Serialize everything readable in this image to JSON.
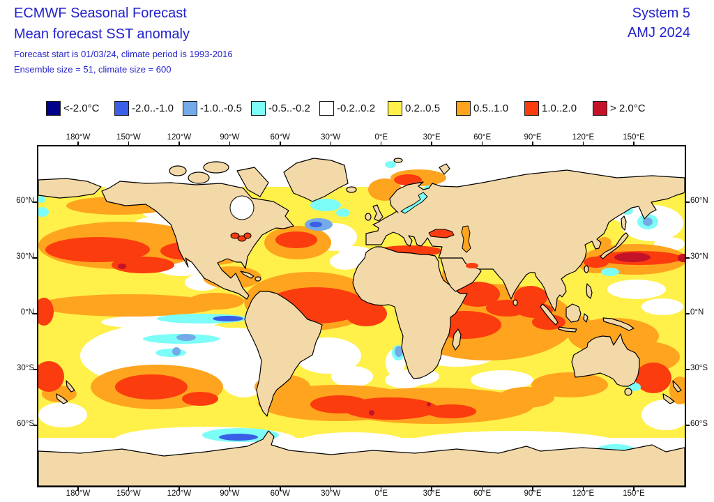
{
  "header": {
    "title": "ECMWF Seasonal Forecast",
    "subtitle": "Mean forecast SST anomaly",
    "meta_line1": "Forecast start is 01/03/24, climate period is 1993-2016",
    "meta_line2": "Ensemble size = 51, climate size = 600",
    "system": "System 5",
    "season": "AMJ 2024",
    "accent_color": "#2222cc"
  },
  "legend": {
    "items": [
      {
        "label": "<-2.0°C",
        "color": "#00008b"
      },
      {
        "label": "-2.0..-1.0",
        "color": "#3a5fe6"
      },
      {
        "label": "-1.0..-0.5",
        "color": "#74aae8"
      },
      {
        "label": "-0.5..-0.2",
        "color": "#7dfdf8"
      },
      {
        "label": "-0.2..0.2",
        "color": "#ffffff"
      },
      {
        "label": "0.2..0.5",
        "color": "#fff04a"
      },
      {
        "label": "0.5..1.0",
        "color": "#ffa41e"
      },
      {
        "label": "1.0..2.0",
        "color": "#fb3c0e"
      },
      {
        "label": "> 2.0°C",
        "color": "#c41228"
      }
    ]
  },
  "map": {
    "land_color": "#f4d9a8",
    "top_ticks": [
      "180°W",
      "150°W",
      "120°W",
      "90°W",
      "60°W",
      "30°W",
      "0°E",
      "30°E",
      "60°E",
      "90°E",
      "120°E",
      "150°E"
    ],
    "bottom_ticks": [
      "180°W",
      "150°W",
      "120°W",
      "90°W",
      "60°W",
      "30°W",
      "0°E",
      "30°E",
      "60°E",
      "90°E",
      "120°E",
      "150°E"
    ],
    "left_ticks": [
      "60°N",
      "30°N",
      "0°N",
      "30°S",
      "60°S"
    ],
    "right_ticks": [
      "60°N",
      "30°N",
      "0°N",
      "30°S",
      "60°S"
    ]
  }
}
